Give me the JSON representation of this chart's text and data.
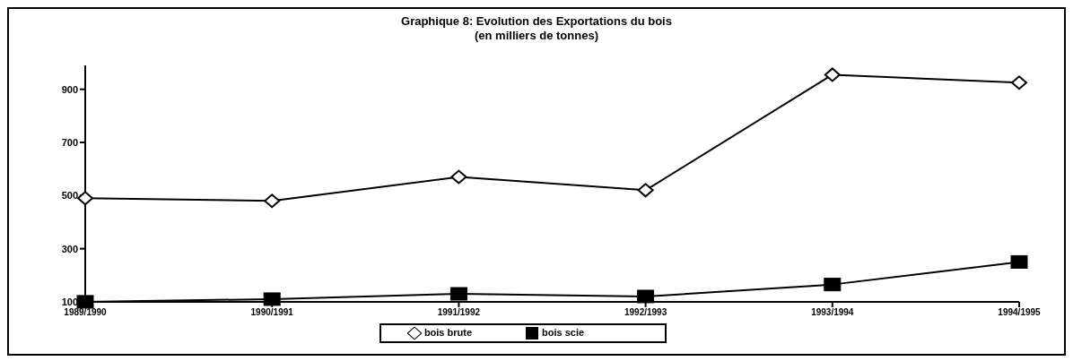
{
  "chart_data": {
    "type": "line",
    "title": "Graphique 8:  Evolution des Exportations du bois",
    "subtitle": "(en milliers de tonnes)",
    "categories": [
      "1989/1990",
      "1990/1991",
      "1991/1992",
      "1992/1993",
      "1993/1994",
      "1994/1995"
    ],
    "series": [
      {
        "name": "bois brute",
        "color": "#000000",
        "marker": "diamond",
        "values": [
          490,
          480,
          570,
          520,
          955,
          925
        ]
      },
      {
        "name": "bois scie",
        "color": "#000000",
        "marker": "square",
        "values": [
          100,
          110,
          130,
          120,
          165,
          250
        ]
      }
    ],
    "ylim": [
      100,
      990
    ],
    "yticks": [
      100,
      300,
      500,
      700,
      900
    ],
    "legend": "bottom"
  }
}
